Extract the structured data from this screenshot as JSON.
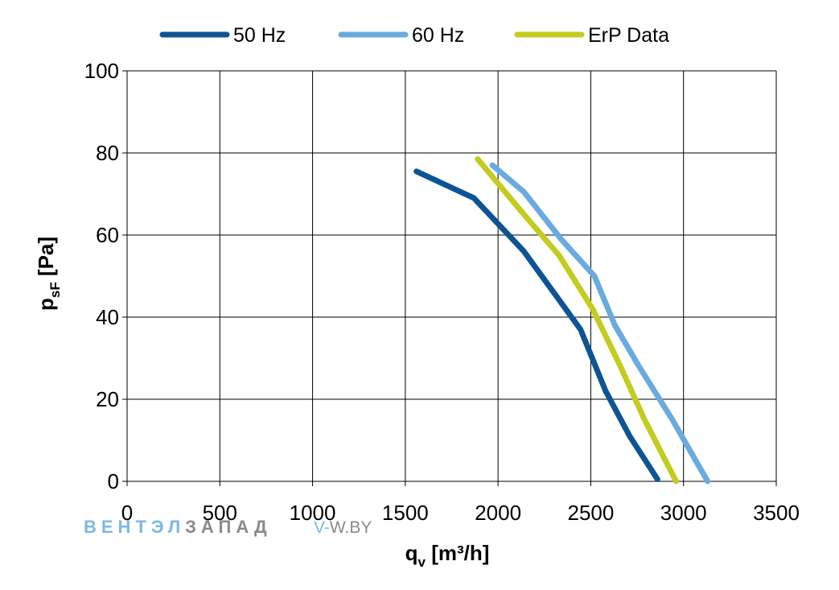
{
  "chart_data": {
    "type": "line",
    "xlabel": {
      "main": "q",
      "sub": "v",
      "unit": " [m³/h]"
    },
    "ylabel": {
      "main": "p",
      "sub": "sF",
      "unit": " [Pa]"
    },
    "xlim": [
      0,
      3500
    ],
    "ylim": [
      0,
      100
    ],
    "x_ticks": [
      0,
      500,
      1000,
      1500,
      2000,
      2500,
      3000,
      3500
    ],
    "y_ticks": [
      0,
      20,
      40,
      60,
      80,
      100
    ],
    "grid": true,
    "legend_position": "top",
    "series": [
      {
        "name": "50 Hz",
        "color": "#0d5494",
        "points": [
          [
            1560,
            75.5
          ],
          [
            1870,
            69
          ],
          [
            2140,
            56
          ],
          [
            2445,
            37
          ],
          [
            2580,
            22
          ],
          [
            2710,
            11
          ],
          [
            2860,
            0.5
          ]
        ]
      },
      {
        "name": "60 Hz",
        "color": "#6aabdf",
        "points": [
          [
            1970,
            77
          ],
          [
            2140,
            70.5
          ],
          [
            2340,
            59
          ],
          [
            2520,
            50
          ],
          [
            2630,
            38
          ],
          [
            2760,
            28
          ],
          [
            2940,
            15
          ],
          [
            3130,
            0
          ]
        ]
      },
      {
        "name": "ErP Data",
        "color": "#c3cc1f",
        "points": [
          [
            1890,
            78.5
          ],
          [
            2140,
            65
          ],
          [
            2330,
            55
          ],
          [
            2510,
            42
          ],
          [
            2660,
            28
          ],
          [
            2790,
            15
          ],
          [
            2960,
            0
          ]
        ]
      }
    ]
  },
  "watermark": {
    "brand_part1": "ВЕНТЭЛ",
    "brand_part2": "ЗАПАД",
    "url_part1": "V-",
    "url_part2": "W.BY",
    "color_light": "#7db8e0",
    "color_dark": "#8a8a8a"
  }
}
